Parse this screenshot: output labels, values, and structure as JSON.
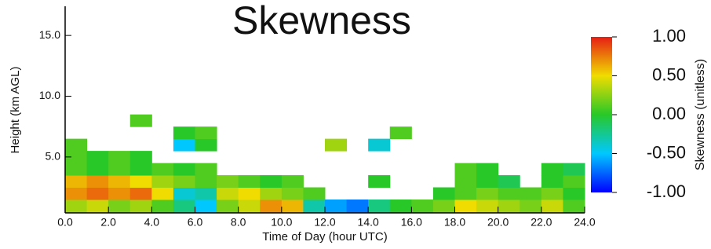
{
  "chart_data": {
    "type": "heatmap",
    "title": "Skewness",
    "x_label": "Time of Day (hour UTC)",
    "y_label": "Height (km AGL)",
    "xlim": [
      0,
      24
    ],
    "ylim": [
      0.4,
      17.4
    ],
    "xticks": [
      {
        "value": 0,
        "label": "0.0"
      },
      {
        "value": 2,
        "label": "2.0"
      },
      {
        "value": 4,
        "label": "4.0"
      },
      {
        "value": 6,
        "label": "6.0"
      },
      {
        "value": 8,
        "label": "8.0"
      },
      {
        "value": 10,
        "label": "10.0"
      },
      {
        "value": 12,
        "label": "12.0"
      },
      {
        "value": 14,
        "label": "14.0"
      },
      {
        "value": 16,
        "label": "16.0"
      },
      {
        "value": 18,
        "label": "18.0"
      },
      {
        "value": 20,
        "label": "20.0"
      },
      {
        "value": 22,
        "label": "22.0"
      },
      {
        "value": 24,
        "label": "24.0"
      }
    ],
    "yticks": [
      {
        "value": 5,
        "label": "5.0"
      },
      {
        "value": 10,
        "label": "10.0"
      },
      {
        "value": 15,
        "label": "15.0"
      }
    ],
    "xbins": [
      0,
      1,
      2,
      3,
      4,
      5,
      6,
      7,
      8,
      9,
      10,
      11,
      12,
      13,
      14,
      15,
      16,
      17,
      18,
      19,
      20,
      21,
      22,
      23,
      24
    ],
    "ybins": [
      0.4,
      1.5,
      2.5,
      3.5,
      4.5,
      5.5,
      6.5,
      7.5,
      8.5
    ],
    "z": [
      [
        0.3,
        0.4,
        0.2,
        0.3,
        0.1,
        -0.2,
        -0.5,
        0.2,
        0.4,
        0.7,
        0.6,
        -0.3,
        -0.6,
        -0.7,
        -0.2,
        0.0,
        0.1,
        0.2,
        0.5,
        0.4,
        0.3,
        0.2,
        0.4,
        0.1
      ],
      [
        0.7,
        0.8,
        0.7,
        0.8,
        0.5,
        -0.4,
        -0.3,
        0.4,
        0.5,
        0.3,
        0.2,
        0.1,
        null,
        null,
        null,
        null,
        null,
        0.0,
        0.1,
        0.2,
        0.1,
        0.1,
        0.2,
        0.0
      ],
      [
        0.6,
        0.7,
        0.6,
        0.5,
        0.3,
        0.2,
        0.1,
        0.2,
        0.1,
        0.0,
        0.1,
        null,
        null,
        null,
        0.0,
        null,
        null,
        null,
        0.1,
        0.0,
        -0.1,
        null,
        0.0,
        0.1
      ],
      [
        0.1,
        0.0,
        0.1,
        0.0,
        0.1,
        0.0,
        0.1,
        null,
        null,
        null,
        null,
        null,
        null,
        null,
        null,
        null,
        null,
        null,
        0.1,
        0.0,
        null,
        null,
        0.0,
        -0.1
      ],
      [
        0.1,
        0.0,
        0.1,
        0.0,
        null,
        null,
        null,
        null,
        null,
        null,
        null,
        null,
        null,
        null,
        null,
        null,
        null,
        null,
        null,
        null,
        null,
        null,
        null,
        null
      ],
      [
        0.1,
        null,
        null,
        null,
        null,
        -0.5,
        0.0,
        null,
        null,
        null,
        null,
        null,
        0.3,
        null,
        -0.4,
        null,
        null,
        null,
        null,
        null,
        null,
        null,
        null,
        null
      ],
      [
        null,
        null,
        null,
        null,
        null,
        0.0,
        0.1,
        null,
        null,
        null,
        null,
        null,
        null,
        null,
        null,
        0.1,
        null,
        null,
        null,
        null,
        null,
        null,
        null,
        null
      ],
      [
        null,
        null,
        null,
        0.1,
        null,
        null,
        null,
        null,
        null,
        null,
        null,
        null,
        null,
        null,
        null,
        null,
        null,
        null,
        null,
        null,
        null,
        null,
        null,
        null
      ]
    ],
    "colorbar": {
      "label": "Skewness (unitless)",
      "clim": [
        -1,
        1
      ],
      "ticks": [
        {
          "value": 1,
          "label": "1.00"
        },
        {
          "value": 0.5,
          "label": "0.50"
        },
        {
          "value": 0,
          "label": "0.00"
        },
        {
          "value": -0.5,
          "label": "-0.50"
        },
        {
          "value": -1,
          "label": "-1.00"
        }
      ]
    }
  }
}
